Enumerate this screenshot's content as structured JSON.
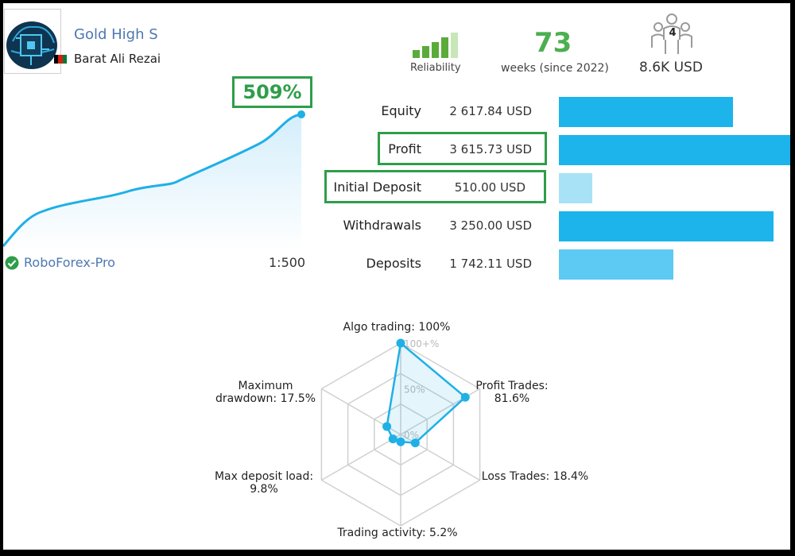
{
  "profile": {
    "signal_name": "Gold High S",
    "author": "Barat Ali Rezai",
    "broker": "RoboForex-Pro",
    "leverage": "1:500"
  },
  "header": {
    "reliability_label": "Reliability",
    "weeks_value": "73",
    "weeks_label": "weeks (since 2022)",
    "subscribers_count": "4",
    "subscribers_funds": "8.6K USD"
  },
  "growth": {
    "value": "509%"
  },
  "stats": [
    {
      "label": "Equity",
      "value": "2 617.84 USD",
      "bar_fraction": 0.73,
      "bar_color": "#1cb4ea"
    },
    {
      "label": "Profit",
      "value": "3 615.73 USD",
      "bar_fraction": 1.0,
      "bar_color": "#1cb4ea"
    },
    {
      "label": "Initial Deposit",
      "value": "510.00 USD",
      "bar_fraction": 0.14,
      "bar_color": "#a8e2f7"
    },
    {
      "label": "Withdrawals",
      "value": "3 250.00 USD",
      "bar_fraction": 0.9,
      "bar_color": "#1cb4ea"
    },
    {
      "label": "Deposits",
      "value": "1 742.11 USD",
      "bar_fraction": 0.48,
      "bar_color": "#5ccaf2"
    }
  ],
  "radar": {
    "scale_labels": [
      "100+%",
      "50%",
      "0%"
    ],
    "axes": [
      {
        "label_line1": "Algo trading: 100%",
        "label_line2": "",
        "value": 100
      },
      {
        "label_line1": "Profit Trades:",
        "label_line2": "81.6%",
        "value": 81.6
      },
      {
        "label_line1": "Loss Trades: 18.4%",
        "label_line2": "",
        "value": 18.4
      },
      {
        "label_line1": "Trading activity: 5.2%",
        "label_line2": "",
        "value": 5.2
      },
      {
        "label_line1": "Max deposit load:",
        "label_line2": "9.8%",
        "value": 9.8
      },
      {
        "label_line1": "Maximum",
        "label_line2": "drawdown: 17.5%",
        "value": 17.5
      }
    ]
  },
  "colors": {
    "accent_blue": "#1cb4ea",
    "highlight_green": "#2e9e4a",
    "weeks_green": "#4caf50",
    "link_blue": "#4e78b0"
  },
  "icons": {
    "avatar": "brain-chip-icon",
    "reliability": "signal-bars-icon",
    "subscribers": "people-group-icon",
    "verified": "check-circle-icon"
  }
}
